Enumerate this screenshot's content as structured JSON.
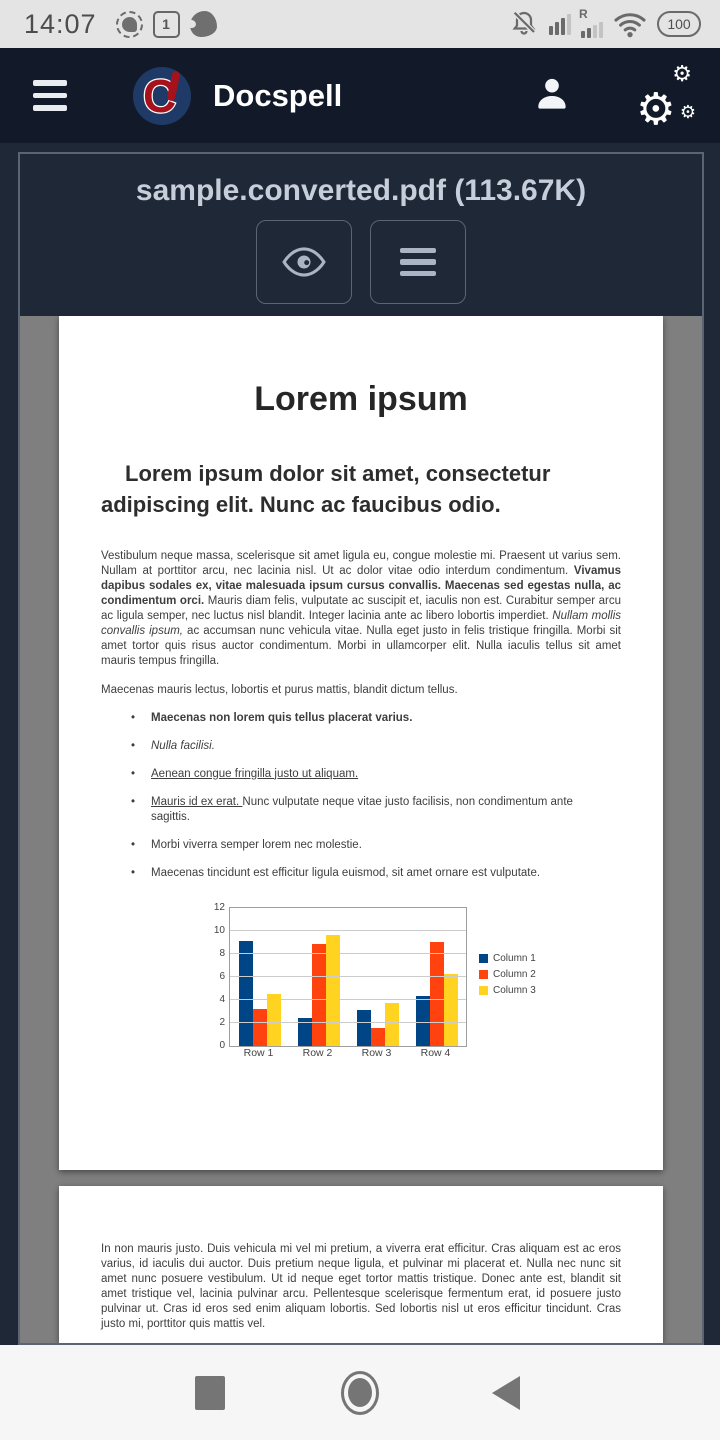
{
  "status_bar": {
    "time": "14:07",
    "calendar_day": "1",
    "battery": "100",
    "left_icons": [
      "signal-messenger-icon",
      "calendar-icon",
      "bird-app-icon"
    ],
    "right_icons": [
      "bell-muted-icon",
      "cell-signal-icon",
      "roaming-signal-icon",
      "wifi-icon",
      "battery-pill"
    ],
    "roaming_label": "R"
  },
  "app_bar": {
    "title": "Docspell",
    "icons": [
      "hamburger-menu-icon",
      "docspell-logo",
      "user-icon",
      "gears-icon"
    ],
    "background": "#121a29",
    "logo_colors": {
      "circle": "#1f3a66",
      "glyph": "#a6121c"
    }
  },
  "viewer": {
    "filename": "sample.converted.pdf (113.67K)",
    "buttons": [
      "preview-eye-icon",
      "menu-list-icon"
    ],
    "border_color": "#5a6473",
    "canvas_color": "#7f7f7f"
  },
  "document": {
    "page1": {
      "title": "Lorem ipsum",
      "subtitle": "Lorem ipsum dolor sit amet, consectetur adipiscing elit. Nunc ac faucibus odio.",
      "para1_parts": [
        {
          "style": "normal",
          "text": "Vestibulum neque massa, scelerisque sit amet ligula eu, congue molestie mi. Praesent ut varius sem. Nullam at porttitor arcu, nec lacinia nisl. Ut ac dolor vitae odio interdum condimentum. "
        },
        {
          "style": "bold",
          "text": "Vivamus dapibus sodales ex, vitae malesuada ipsum cursus convallis. Maecenas sed egestas nulla, ac condimentum orci. "
        },
        {
          "style": "normal",
          "text": "Mauris diam felis, vulputate ac suscipit et, iaculis non est. Curabitur semper arcu ac ligula semper, nec luctus nisl blandit. Integer lacinia ante ac libero lobortis imperdiet. "
        },
        {
          "style": "italic",
          "text": "Nullam mollis convallis ipsum,"
        },
        {
          "style": "normal",
          "text": " ac accumsan nunc vehicula vitae. Nulla eget justo in felis tristique fringilla. Morbi sit amet tortor quis risus auctor condimentum. Morbi in ullamcorper elit. Nulla iaculis tellus sit amet mauris tempus fringilla."
        }
      ],
      "para2": "Maecenas mauris lectus, lobortis et purus mattis, blandit dictum tellus.",
      "bullets": [
        [
          {
            "style": "bold",
            "text": "Maecenas non lorem quis tellus placerat varius."
          }
        ],
        [
          {
            "style": "italic",
            "text": "Nulla facilisi."
          }
        ],
        [
          {
            "style": "underline",
            "text": "Aenean congue fringilla justo ut aliquam. "
          }
        ],
        [
          {
            "style": "underline",
            "text": "Mauris id ex erat. "
          },
          {
            "style": "normal",
            "text": "Nunc vulputate neque vitae justo facilisis, non condimentum ante sagittis."
          }
        ],
        [
          {
            "style": "normal",
            "text": "Morbi viverra semper lorem nec molestie."
          }
        ],
        [
          {
            "style": "normal",
            "text": "Maecenas tincidunt est efficitur ligula euismod, sit amet ornare est vulputate."
          }
        ]
      ]
    },
    "page2": {
      "para": "In non mauris justo. Duis vehicula mi vel mi pretium, a viverra erat efficitur. Cras aliquam est ac eros varius, id iaculis dui auctor. Duis pretium neque ligula, et pulvinar mi placerat et. Nulla nec nunc sit amet nunc posuere vestibulum. Ut id neque eget tortor mattis tristique. Donec ante est, blandit sit amet tristique vel, lacinia pulvinar arcu. Pellentesque scelerisque fermentum erat, id posuere justo pulvinar ut. Cras id eros sed enim aliquam lobortis. Sed lobortis nisl ut eros efficitur tincidunt. Cras justo mi, porttitor quis mattis vel."
    }
  },
  "chart_data": {
    "type": "bar",
    "title": "",
    "categories": [
      "Row 1",
      "Row 2",
      "Row 3",
      "Row 4"
    ],
    "series": [
      {
        "name": "Column 1",
        "color": "#004586",
        "values": [
          9.1,
          2.4,
          3.1,
          4.3
        ]
      },
      {
        "name": "Column 2",
        "color": "#ff420e",
        "values": [
          3.2,
          8.8,
          1.5,
          9.0
        ]
      },
      {
        "name": "Column 3",
        "color": "#ffd320",
        "values": [
          4.5,
          9.65,
          3.7,
          6.2
        ]
      }
    ],
    "ylim": [
      0,
      12
    ],
    "ytick_step": 2,
    "grid": true,
    "legend_position": "right"
  },
  "nav_bar": {
    "icons": [
      "recents-square-icon",
      "home-circle-icon",
      "back-triangle-icon"
    ]
  }
}
